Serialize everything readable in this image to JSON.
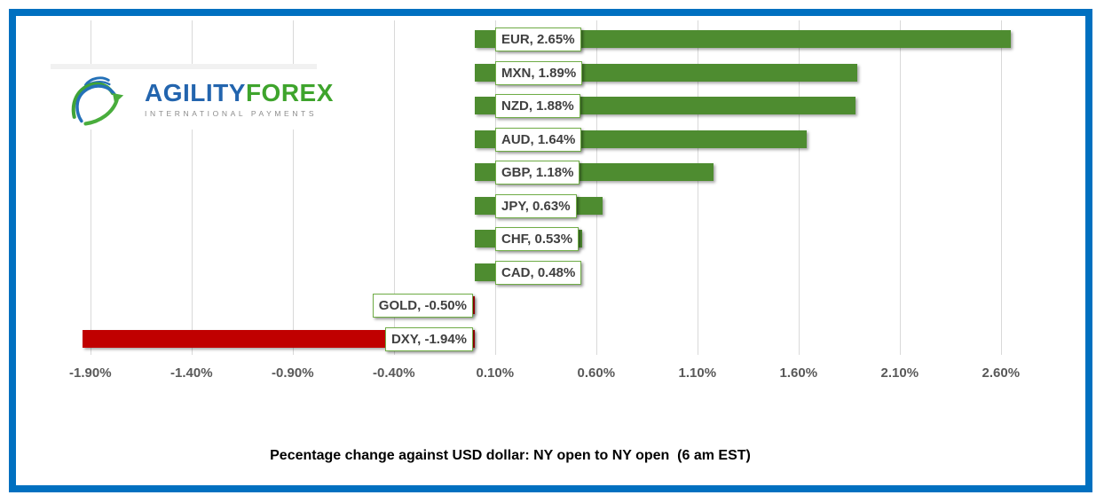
{
  "frame": {
    "border_color": "#0070C0",
    "background": "#FFFFFF"
  },
  "logo": {
    "agility": "AGILITY",
    "forex": "FOREX",
    "tagline": "INTERNATIONAL PAYMENTS",
    "agility_color": "#2365AE",
    "forex_color": "#3EA42C",
    "tagline_color": "#8C8C8C",
    "globe_blue": "#2471B8",
    "globe_green": "#3FA337"
  },
  "chart_data": {
    "type": "bar",
    "orientation": "horizontal",
    "title": "Pecentage change against USD dollar: NY open to NY open  (6 am EST)",
    "categories": [
      "EUR",
      "MXN",
      "NZD",
      "AUD",
      "GBP",
      "JPY",
      "CHF",
      "CAD",
      "GOLD",
      "DXY"
    ],
    "values": [
      2.65,
      1.89,
      1.88,
      1.64,
      1.18,
      0.63,
      0.53,
      0.48,
      -0.5,
      -1.94
    ],
    "bar_labels": [
      "EUR, 2.65%",
      "MXN, 1.89%",
      "NZD, 1.88%",
      "AUD, 1.64%",
      "GBP, 1.18%",
      "JPY, 0.63%",
      "CHF, 0.53%",
      "CAD, 0.48%",
      "GOLD, -0.50%",
      "DXY, -1.94%"
    ],
    "x_ticks": [
      "-1.90%",
      "-1.40%",
      "-0.90%",
      "-0.40%",
      "0.10%",
      "0.60%",
      "1.10%",
      "1.60%",
      "2.10%",
      "2.60%"
    ],
    "x_tick_values": [
      -1.9,
      -1.4,
      -0.9,
      -0.4,
      0.1,
      0.6,
      1.1,
      1.6,
      2.1,
      2.6
    ],
    "xlim": [
      -2.08,
      2.83
    ],
    "grid": true,
    "legend": false,
    "colors": {
      "positive": "#4E8C30",
      "negative": "#C00000",
      "label_border": "#70AD47",
      "label_text": "#404040",
      "grid": "#D9D9D9",
      "axis_text": "#595959"
    }
  }
}
